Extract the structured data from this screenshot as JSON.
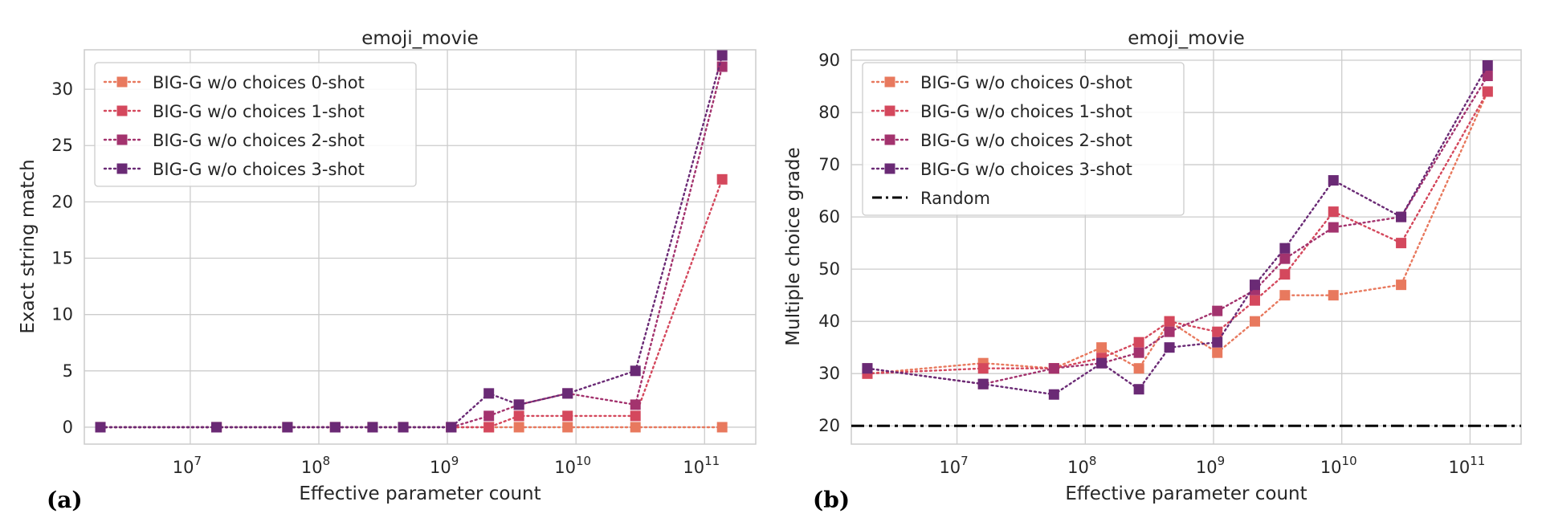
{
  "chart_data": [
    {
      "type": "line",
      "panel_label": "(a)",
      "title": "emoji_movie",
      "xlabel": "Effective parameter count",
      "ylabel": "Exact string match",
      "xscale": "log",
      "xlim": [
        1500000,
        250000000000
      ],
      "ylim": [
        -1.5,
        33.5
      ],
      "yticks": [
        0,
        5,
        10,
        15,
        20,
        25,
        30
      ],
      "xticks": [
        {
          "value": 10000000,
          "base": "10",
          "exp": "7"
        },
        {
          "value": 100000000,
          "base": "10",
          "exp": "8"
        },
        {
          "value": 1000000000,
          "base": "10",
          "exp": "9"
        },
        {
          "value": 10000000000,
          "base": "10",
          "exp": "10"
        },
        {
          "value": 100000000000,
          "base": "10",
          "exp": "11"
        }
      ],
      "legend_position": "upper-left",
      "grid": true,
      "series": [
        {
          "name": "BIG-G w/o choices 0-shot",
          "color": "#e8795e",
          "x": [
            2000000,
            16000000,
            57000000,
            134000000,
            262000000,
            453000000,
            1070000000,
            2100000000,
            3600000000,
            8600000000,
            29000000000,
            137000000000
          ],
          "y": [
            0,
            0,
            0,
            0,
            0,
            0,
            0,
            0,
            0,
            0,
            0,
            0
          ]
        },
        {
          "name": "BIG-G w/o choices 1-shot",
          "color": "#d4485d",
          "x": [
            2000000,
            16000000,
            57000000,
            134000000,
            262000000,
            453000000,
            1070000000,
            2100000000,
            3600000000,
            8600000000,
            29000000000,
            137000000000
          ],
          "y": [
            0,
            0,
            0,
            0,
            0,
            0,
            0,
            0,
            1,
            1,
            1,
            22
          ]
        },
        {
          "name": "BIG-G w/o choices 2-shot",
          "color": "#a3336e",
          "x": [
            2000000,
            16000000,
            57000000,
            134000000,
            262000000,
            453000000,
            1070000000,
            2100000000,
            3600000000,
            8600000000,
            29000000000,
            137000000000
          ],
          "y": [
            0,
            0,
            0,
            0,
            0,
            0,
            0,
            1,
            2,
            3,
            2,
            32
          ]
        },
        {
          "name": "BIG-G w/o choices 3-shot",
          "color": "#6a2a75",
          "x": [
            2000000,
            16000000,
            57000000,
            134000000,
            262000000,
            453000000,
            1070000000,
            2100000000,
            3600000000,
            8600000000,
            29000000000,
            137000000000
          ],
          "y": [
            0,
            0,
            0,
            0,
            0,
            0,
            0,
            3,
            2,
            3,
            5,
            33
          ]
        }
      ]
    },
    {
      "type": "line",
      "panel_label": "(b)",
      "title": "emoji_movie",
      "xlabel": "Effective parameter count",
      "ylabel": "Multiple choice grade",
      "xscale": "log",
      "xlim": [
        1500000,
        250000000000
      ],
      "ylim": [
        16.5,
        92
      ],
      "yticks": [
        20,
        30,
        40,
        50,
        60,
        70,
        80,
        90
      ],
      "xticks": [
        {
          "value": 10000000,
          "base": "10",
          "exp": "7"
        },
        {
          "value": 100000000,
          "base": "10",
          "exp": "8"
        },
        {
          "value": 1000000000,
          "base": "10",
          "exp": "9"
        },
        {
          "value": 10000000000,
          "base": "10",
          "exp": "10"
        },
        {
          "value": 100000000000,
          "base": "10",
          "exp": "11"
        }
      ],
      "legend_position": "upper-left",
      "grid": true,
      "series": [
        {
          "name": "BIG-G w/o choices 0-shot",
          "color": "#e8795e",
          "x": [
            2000000,
            16000000,
            57000000,
            134000000,
            262000000,
            453000000,
            1070000000,
            2100000000,
            3600000000,
            8600000000,
            29000000000,
            137000000000
          ],
          "y": [
            30,
            32,
            31,
            35,
            31,
            40,
            34,
            40,
            45,
            45,
            47,
            84
          ]
        },
        {
          "name": "BIG-G w/o choices 1-shot",
          "color": "#d4485d",
          "x": [
            2000000,
            16000000,
            57000000,
            134000000,
            262000000,
            453000000,
            1070000000,
            2100000000,
            3600000000,
            8600000000,
            29000000000,
            137000000000
          ],
          "y": [
            30,
            31,
            31,
            33,
            36,
            40,
            38,
            44,
            49,
            61,
            55,
            84
          ]
        },
        {
          "name": "BIG-G w/o choices 2-shot",
          "color": "#a3336e",
          "x": [
            2000000,
            16000000,
            57000000,
            134000000,
            262000000,
            453000000,
            1070000000,
            2100000000,
            3600000000,
            8600000000,
            29000000000,
            137000000000
          ],
          "y": [
            31,
            28,
            31,
            32,
            34,
            38,
            42,
            46,
            52,
            58,
            60,
            87
          ]
        },
        {
          "name": "BIG-G w/o choices 3-shot",
          "color": "#6a2a75",
          "x": [
            2000000,
            16000000,
            57000000,
            134000000,
            262000000,
            453000000,
            1070000000,
            2100000000,
            3600000000,
            8600000000,
            29000000000,
            137000000000
          ],
          "y": [
            31,
            28,
            26,
            32,
            27,
            35,
            36,
            47,
            54,
            67,
            60,
            89
          ]
        }
      ],
      "reference_line": {
        "name": "Random",
        "y": 20,
        "color": "#000000",
        "style": "dash-dot"
      }
    }
  ]
}
